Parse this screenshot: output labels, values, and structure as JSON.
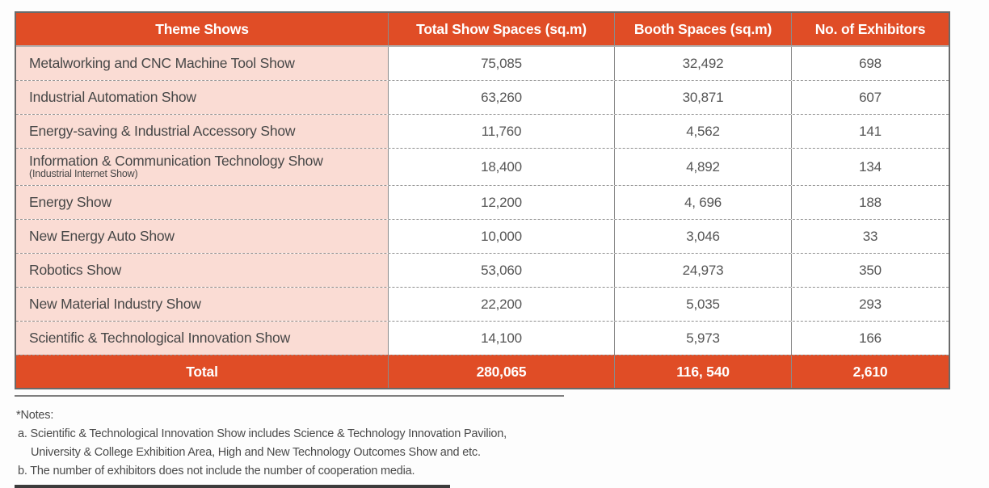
{
  "colors": {
    "accent_orange": "#e04d26",
    "row_label_pink": "#fadcd4",
    "body_text": "#4f4f4f",
    "header_text": "#ffffff"
  },
  "table": {
    "columns": [
      "Theme Shows",
      "Total Show Spaces (sq.m)",
      "Booth Spaces (sq.m)",
      "No. of Exhibitors"
    ],
    "rows": [
      {
        "name": "Metalworking and CNC Machine Tool Show",
        "subname": "",
        "total_space": "75,085",
        "booth_space": "32,492",
        "exhibitors": "698"
      },
      {
        "name": "Industrial Automation Show",
        "subname": "",
        "total_space": "63,260",
        "booth_space": "30,871",
        "exhibitors": "607"
      },
      {
        "name": "Energy-saving & Industrial Accessory Show",
        "subname": "",
        "total_space": "11,760",
        "booth_space": "4,562",
        "exhibitors": "141"
      },
      {
        "name": "Information & Communication Technology Show",
        "subname": "(Industrial Internet Show)",
        "total_space": "18,400",
        "booth_space": "4,892",
        "exhibitors": "134"
      },
      {
        "name": "Energy Show",
        "subname": "",
        "total_space": "12,200",
        "booth_space": "4, 696",
        "exhibitors": "188"
      },
      {
        "name": "New Energy Auto Show",
        "subname": "",
        "total_space": "10,000",
        "booth_space": "3,046",
        "exhibitors": "33"
      },
      {
        "name": "Robotics Show",
        "subname": "",
        "total_space": "53,060",
        "booth_space": "24,973",
        "exhibitors": "350"
      },
      {
        "name": "New Material Industry Show",
        "subname": "",
        "total_space": "22,200",
        "booth_space": "5,035",
        "exhibitors": "293"
      },
      {
        "name": "Scientific & Technological Innovation Show",
        "subname": "",
        "total_space": "14,100",
        "booth_space": "5,973",
        "exhibitors": "166"
      }
    ],
    "total": {
      "label": "Total",
      "total_space": "280,065",
      "booth_space": "116, 540",
      "exhibitors": "2,610"
    }
  },
  "notes": {
    "title": "*Notes:",
    "a_line1": "a. Scientific & Technological Innovation Show includes Science & Technology Innovation Pavilion,",
    "a_line2": "University & College Exhibition Area, High and New Technology Outcomes Show and etc.",
    "b": "b. The number of exhibitors does not include the number of cooperation media."
  }
}
